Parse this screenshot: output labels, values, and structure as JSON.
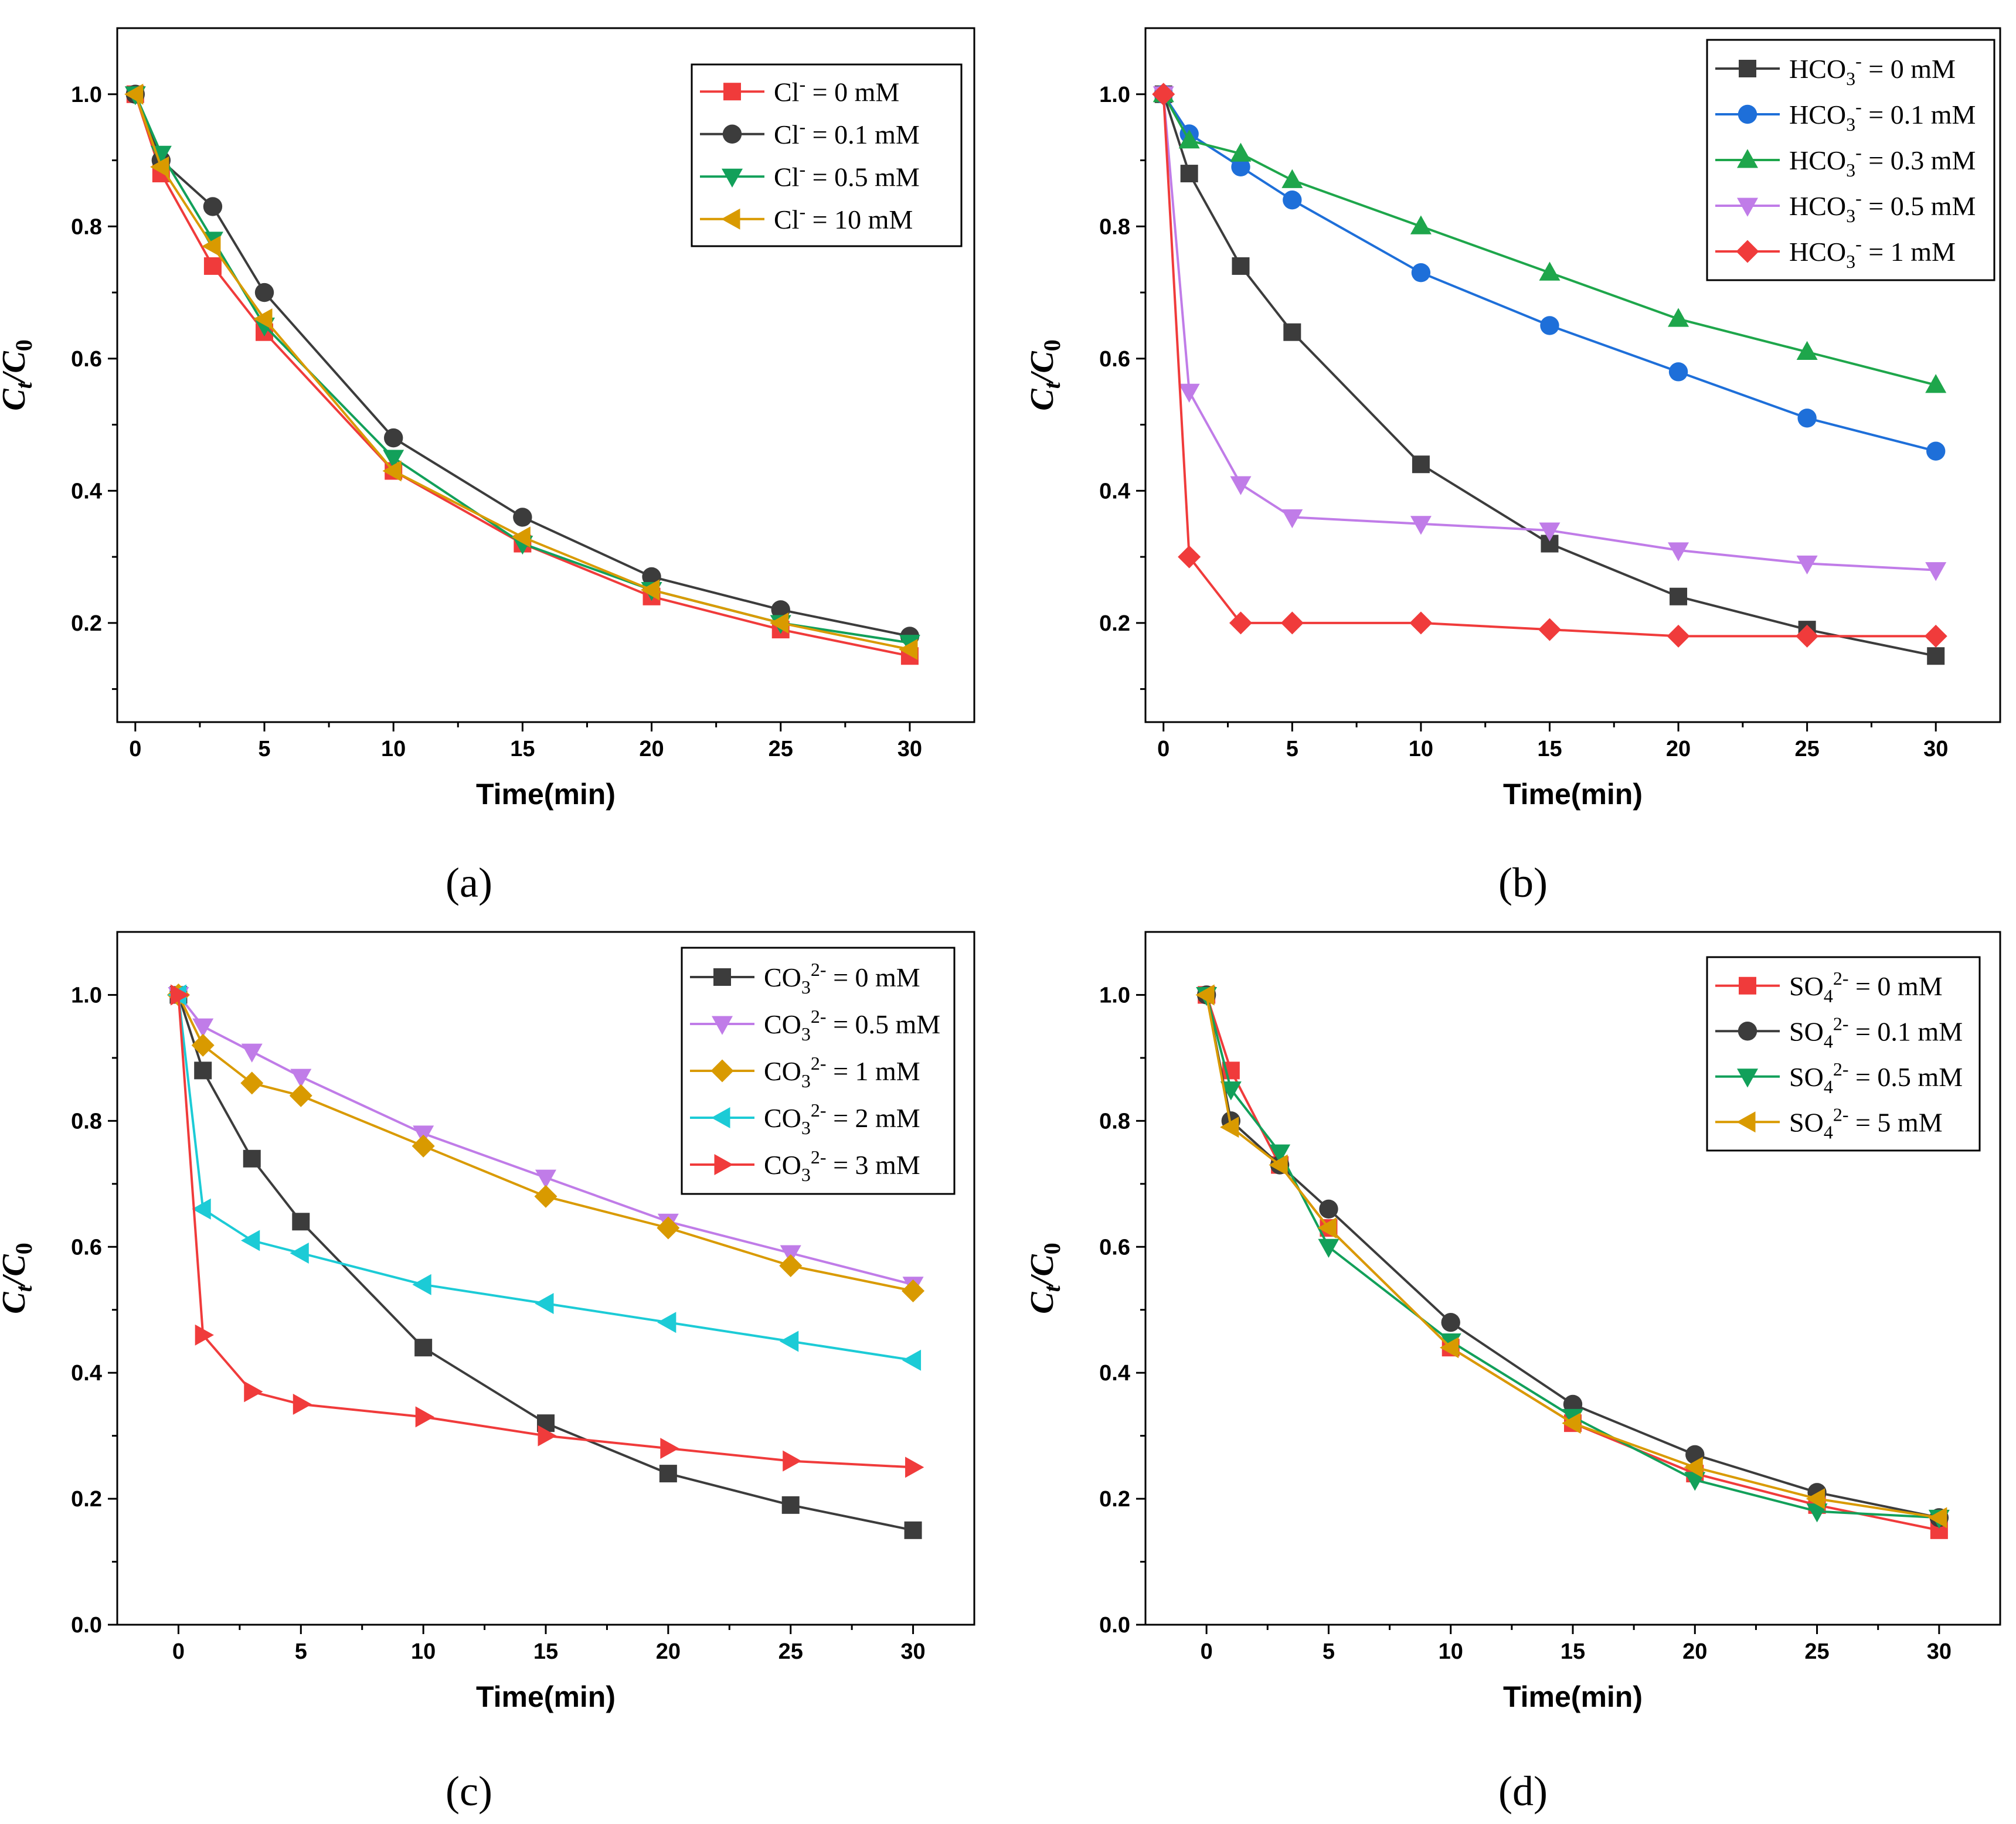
{
  "chart_data": [
    {
      "type": "line",
      "panel_label": "(a)",
      "xlabel": "Time(min)",
      "ylabel": {
        "main": "C",
        "numer_sub": "t",
        "sep": "/",
        "denom": "C",
        "denom_sub": "0"
      },
      "xlim": [
        -0.7,
        32.5
      ],
      "ylim": [
        0.05,
        1.1
      ],
      "xticks": [
        0,
        5,
        10,
        15,
        20,
        25,
        30
      ],
      "xtick_labels": [
        "0",
        "5",
        "10",
        "15",
        "20",
        "25",
        "30"
      ],
      "yticks": [
        0.2,
        0.4,
        0.6,
        0.8,
        1.0
      ],
      "ytick_labels": [
        "0.2",
        "0.4",
        "0.6",
        "0.8",
        "1.0"
      ],
      "legend_position": "top-right",
      "x": [
        0,
        1,
        3,
        5,
        10,
        15,
        20,
        25,
        30
      ],
      "series": [
        {
          "name": {
            "base": "Cl",
            "sub": "",
            "sup": "-",
            "rest": " = 0 mM"
          },
          "color": "#f03b3b",
          "marker": "square",
          "values": [
            1.0,
            0.88,
            0.74,
            0.64,
            0.43,
            0.32,
            0.24,
            0.19,
            0.15
          ]
        },
        {
          "name": {
            "base": "Cl",
            "sub": "",
            "sup": "-",
            "rest": " = 0.1 mM"
          },
          "color": "#3c3c3c",
          "marker": "circle",
          "values": [
            1.0,
            0.9,
            0.83,
            0.7,
            0.48,
            0.36,
            0.27,
            0.22,
            0.18
          ]
        },
        {
          "name": {
            "base": "Cl",
            "sub": "",
            "sup": "-",
            "rest": " = 0.5 mM"
          },
          "color": "#12a05a",
          "marker": "triangle-down",
          "values": [
            1.0,
            0.91,
            0.78,
            0.65,
            0.45,
            0.32,
            0.25,
            0.2,
            0.17
          ]
        },
        {
          "name": {
            "base": "Cl",
            "sub": "",
            "sup": "-",
            "rest": " = 10  mM"
          },
          "color": "#d99a00",
          "marker": "triangle-left",
          "values": [
            1.0,
            0.89,
            0.77,
            0.66,
            0.43,
            0.33,
            0.25,
            0.2,
            0.16
          ]
        }
      ]
    },
    {
      "type": "line",
      "panel_label": "(b)",
      "xlabel": "Time(min)",
      "ylabel": {
        "main": "C",
        "numer_sub": "t",
        "sep": "/",
        "denom": "C",
        "denom_sub": "0"
      },
      "xlim": [
        -0.7,
        32.5
      ],
      "ylim": [
        0.05,
        1.1
      ],
      "xticks": [
        0,
        5,
        10,
        15,
        20,
        25,
        30
      ],
      "xtick_labels": [
        "0",
        "5",
        "10",
        "15",
        "20",
        "25",
        "30"
      ],
      "yticks": [
        0.2,
        0.4,
        0.6,
        0.8,
        1.0
      ],
      "ytick_labels": [
        "0.2",
        "0.4",
        "0.6",
        "0.8",
        "1.0"
      ],
      "legend_position": "top-right",
      "x": [
        0,
        1,
        3,
        5,
        10,
        15,
        20,
        25,
        30
      ],
      "series": [
        {
          "name": {
            "base": "HCO",
            "sub": "3",
            "sup": "-",
            "rest": " = 0 mM"
          },
          "color": "#3c3c3c",
          "marker": "square",
          "values": [
            1.0,
            0.88,
            0.74,
            0.64,
            0.44,
            0.32,
            0.24,
            0.19,
            0.15
          ]
        },
        {
          "name": {
            "base": "HCO",
            "sub": "3",
            "sup": "-",
            "rest": " = 0.1 mM"
          },
          "color": "#1e6fd9",
          "marker": "circle",
          "values": [
            1.0,
            0.94,
            0.89,
            0.84,
            0.73,
            0.65,
            0.58,
            0.51,
            0.46
          ]
        },
        {
          "name": {
            "base": "HCO",
            "sub": "3",
            "sup": "-",
            "rest": " = 0.3 mM"
          },
          "color": "#1ea64b",
          "marker": "triangle-up",
          "values": [
            1.0,
            0.93,
            0.91,
            0.87,
            0.8,
            0.73,
            0.66,
            0.61,
            0.56
          ]
        },
        {
          "name": {
            "base": "HCO",
            "sub": "3",
            "sup": "-",
            "rest": " = 0.5 mM"
          },
          "color": "#c07ce8",
          "marker": "triangle-down",
          "values": [
            1.0,
            0.55,
            0.41,
            0.36,
            0.35,
            0.34,
            0.31,
            0.29,
            0.28
          ]
        },
        {
          "name": {
            "base": "HCO",
            "sub": "3",
            "sup": "-",
            "rest": " = 1 mM"
          },
          "color": "#f03b3b",
          "marker": "diamond",
          "values": [
            1.0,
            0.3,
            0.2,
            0.2,
            0.2,
            0.19,
            0.18,
            0.18,
            0.18
          ]
        }
      ]
    },
    {
      "type": "line",
      "panel_label": "(c)",
      "xlabel": "Time(min)",
      "ylabel": {
        "main": "C",
        "numer_sub": "t",
        "sep": "/",
        "denom": "C",
        "denom_sub": "0"
      },
      "xlim": [
        -2.5,
        32.5
      ],
      "ylim": [
        0.0,
        1.1
      ],
      "xticks": [
        0,
        5,
        10,
        15,
        20,
        25,
        30
      ],
      "xtick_labels": [
        "0",
        "5",
        "10",
        "15",
        "20",
        "25",
        "30"
      ],
      "yticks": [
        0.0,
        0.2,
        0.4,
        0.6,
        0.8,
        1.0
      ],
      "ytick_labels": [
        "0.0",
        "0.2",
        "0.4",
        "0.6",
        "0.8",
        "1.0"
      ],
      "legend_position": "top-right",
      "x": [
        0,
        1,
        3,
        5,
        10,
        15,
        20,
        25,
        30
      ],
      "series": [
        {
          "name": {
            "base": "CO",
            "sub": "3",
            "sup": "2-",
            "rest": " = 0 mM"
          },
          "color": "#3c3c3c",
          "marker": "square",
          "values": [
            1.0,
            0.88,
            0.74,
            0.64,
            0.44,
            0.32,
            0.24,
            0.19,
            0.15
          ]
        },
        {
          "name": {
            "base": "CO",
            "sub": "3",
            "sup": "2-",
            "rest": " = 0.5 mM"
          },
          "color": "#c07ce8",
          "marker": "triangle-down",
          "values": [
            1.0,
            0.95,
            0.91,
            0.87,
            0.78,
            0.71,
            0.64,
            0.59,
            0.54
          ]
        },
        {
          "name": {
            "base": "CO",
            "sub": "3",
            "sup": "2-",
            "rest": " = 1  mM"
          },
          "color": "#d99a00",
          "marker": "diamond",
          "values": [
            1.0,
            0.92,
            0.86,
            0.84,
            0.76,
            0.68,
            0.63,
            0.57,
            0.53
          ]
        },
        {
          "name": {
            "base": "CO",
            "sub": "3",
            "sup": "2-",
            "rest": " = 2  mM"
          },
          "color": "#1ccbd6",
          "marker": "triangle-left",
          "values": [
            1.0,
            0.66,
            0.61,
            0.59,
            0.54,
            0.51,
            0.48,
            0.45,
            0.42
          ]
        },
        {
          "name": {
            "base": "CO",
            "sub": "3",
            "sup": "2-",
            "rest": " = 3  mM"
          },
          "color": "#f03b3b",
          "marker": "triangle-right",
          "values": [
            1.0,
            0.46,
            0.37,
            0.35,
            0.33,
            0.3,
            0.28,
            0.26,
            0.25
          ]
        }
      ]
    },
    {
      "type": "line",
      "panel_label": "(d)",
      "xlabel": "Time(min)",
      "ylabel": {
        "main": "C",
        "numer_sub": "t",
        "sep": "/",
        "denom": "C",
        "denom_sub": "0"
      },
      "xlim": [
        -2.5,
        32.5
      ],
      "ylim": [
        0.0,
        1.1
      ],
      "xticks": [
        0,
        5,
        10,
        15,
        20,
        25,
        30
      ],
      "xtick_labels": [
        "0",
        "5",
        "10",
        "15",
        "20",
        "25",
        "30"
      ],
      "yticks": [
        0.0,
        0.2,
        0.4,
        0.6,
        0.8,
        1.0
      ],
      "ytick_labels": [
        "0.0",
        "0.2",
        "0.4",
        "0.6",
        "0.8",
        "1.0"
      ],
      "legend_position": "top-right",
      "x": [
        0,
        1,
        3,
        5,
        10,
        15,
        20,
        25,
        30
      ],
      "series": [
        {
          "name": {
            "base": "SO",
            "sub": "4",
            "sup": "2-",
            "rest": " = 0 mM"
          },
          "color": "#f03b3b",
          "marker": "square",
          "values": [
            1.0,
            0.88,
            0.73,
            0.63,
            0.44,
            0.32,
            0.24,
            0.19,
            0.15
          ]
        },
        {
          "name": {
            "base": "SO",
            "sub": "4",
            "sup": "2-",
            "rest": " = 0.1 mM"
          },
          "color": "#3c3c3c",
          "marker": "circle",
          "values": [
            1.0,
            0.8,
            0.73,
            0.66,
            0.48,
            0.35,
            0.27,
            0.21,
            0.17
          ]
        },
        {
          "name": {
            "base": "SO",
            "sub": "4",
            "sup": "2-",
            "rest": " = 0.5 mM"
          },
          "color": "#12a05a",
          "marker": "triangle-down",
          "values": [
            1.0,
            0.85,
            0.75,
            0.6,
            0.45,
            0.33,
            0.23,
            0.18,
            0.17
          ]
        },
        {
          "name": {
            "base": "SO",
            "sub": "4",
            "sup": "2-",
            "rest": " = 5 mM"
          },
          "color": "#d99a00",
          "marker": "triangle-left",
          "values": [
            1.0,
            0.79,
            0.73,
            0.63,
            0.44,
            0.32,
            0.25,
            0.2,
            0.17
          ]
        }
      ]
    }
  ]
}
